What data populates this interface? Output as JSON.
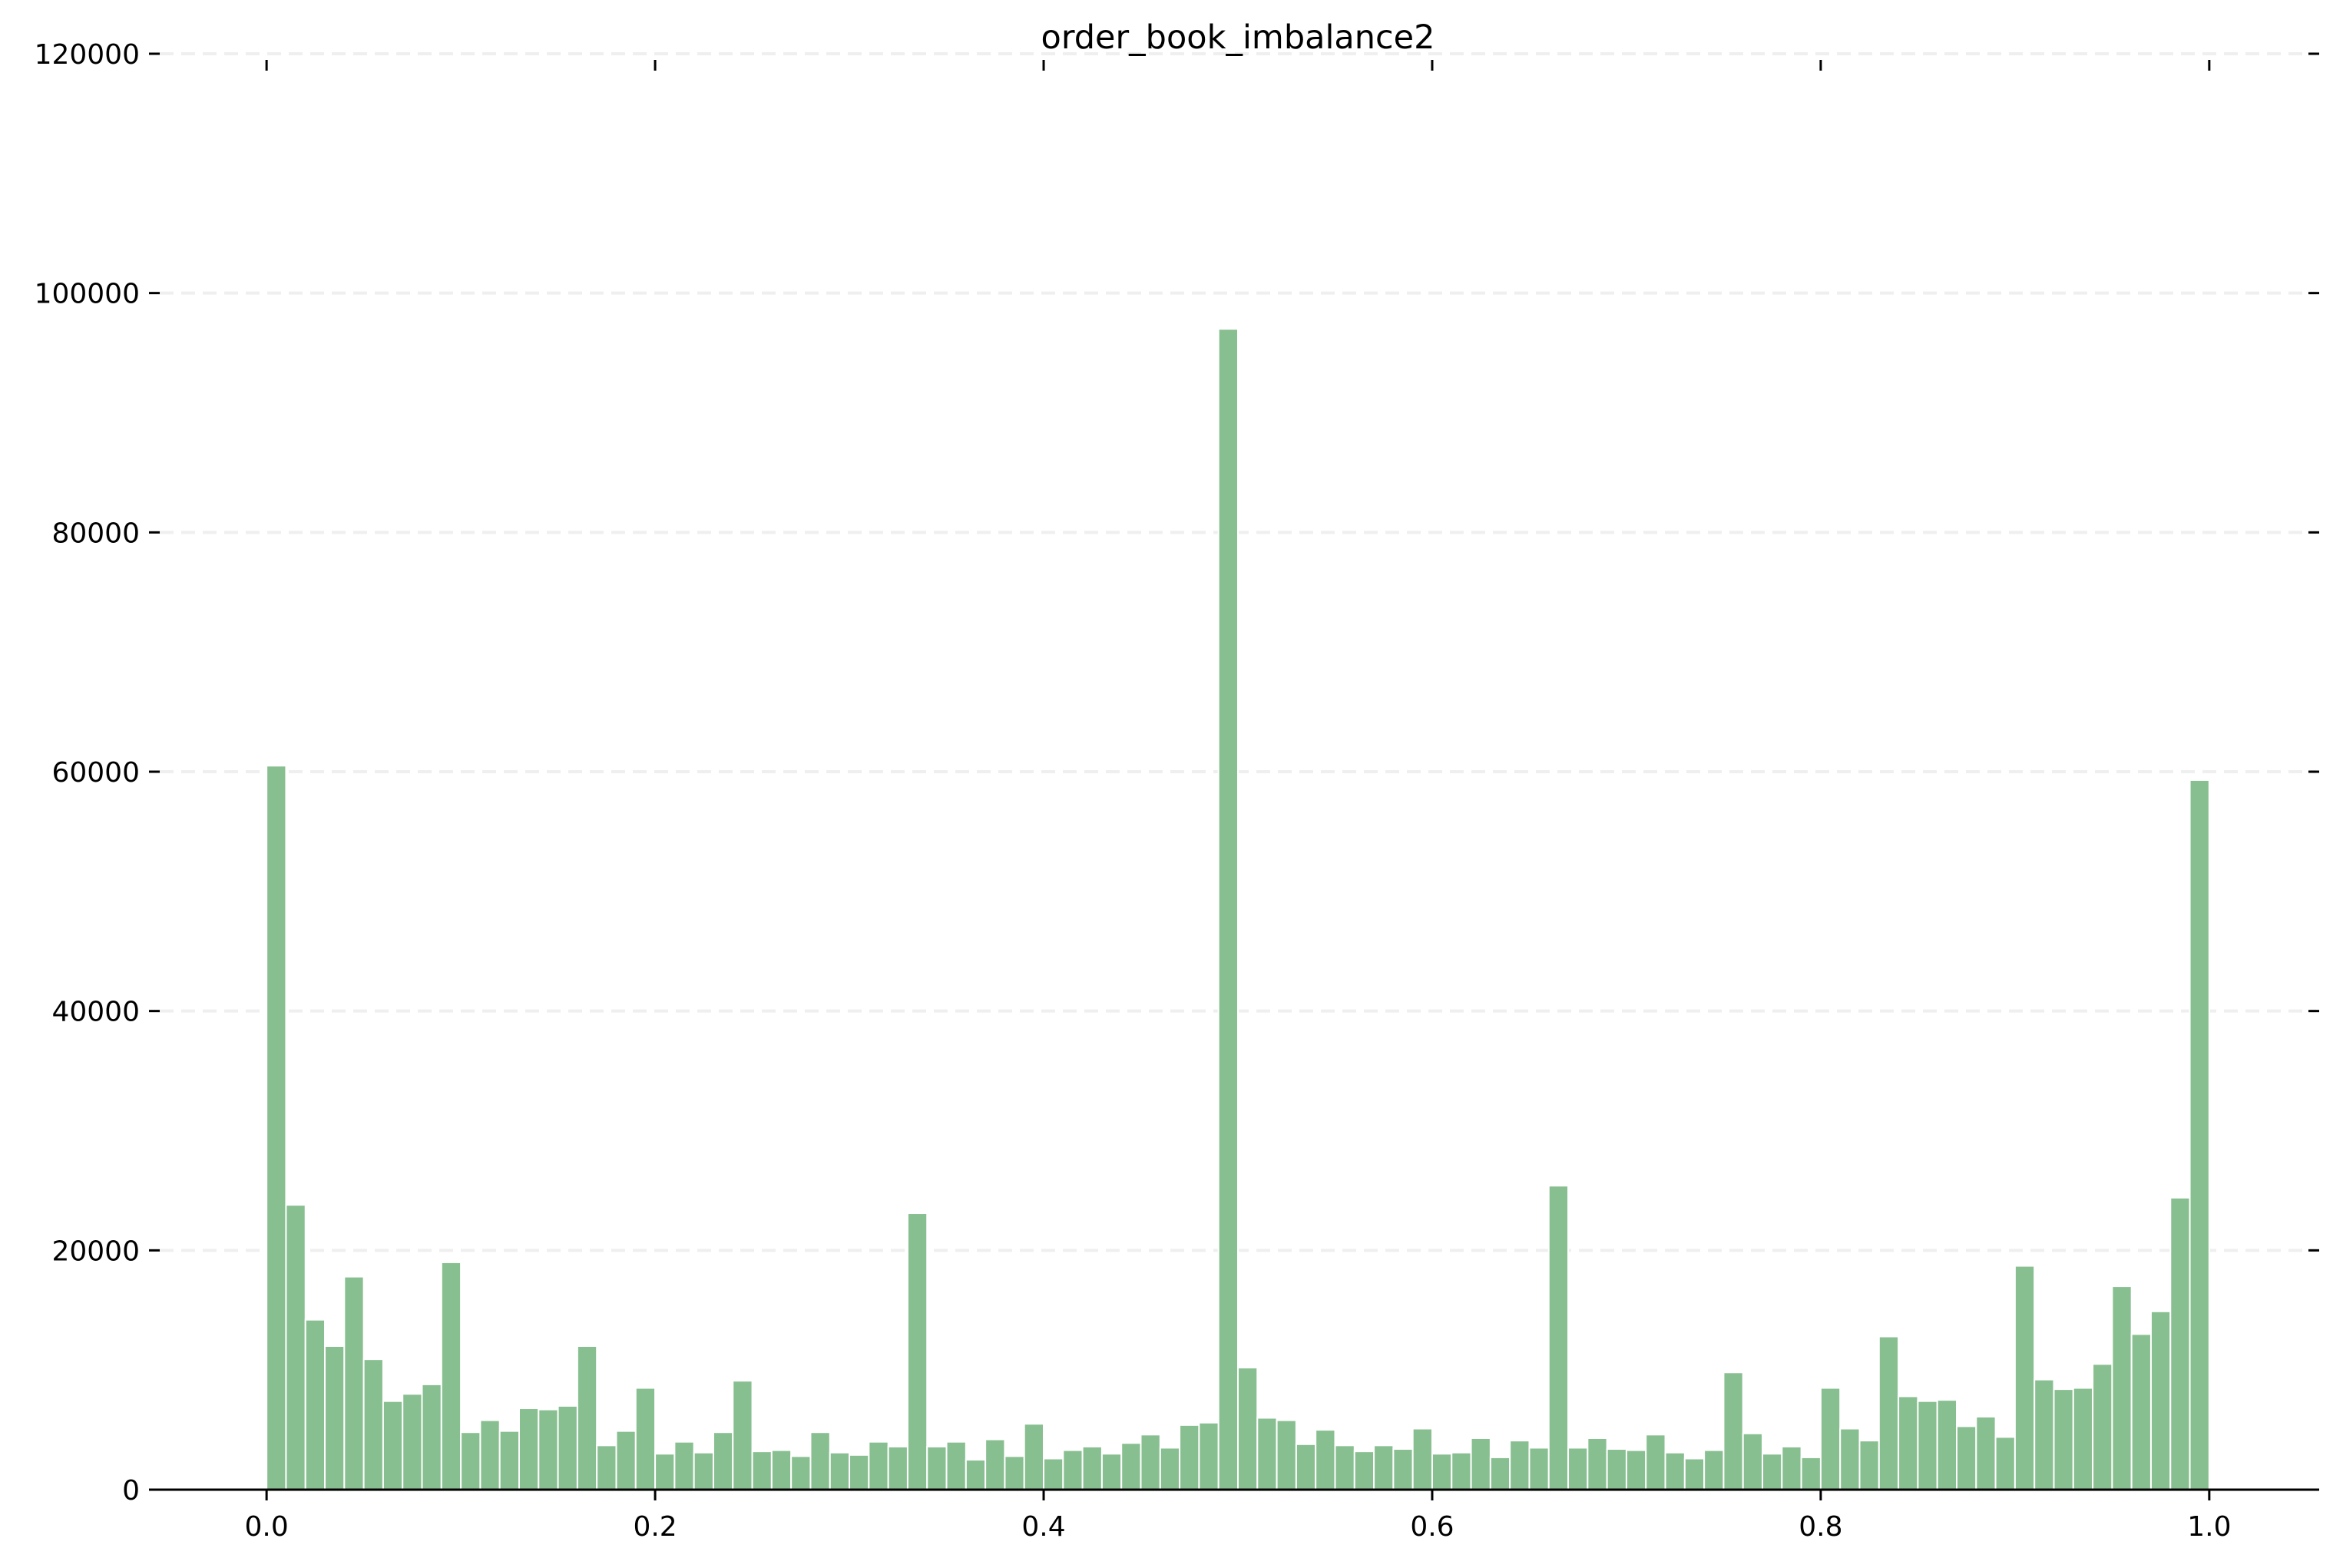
{
  "chart_data": {
    "type": "bar",
    "title": "order_book_imbalance2",
    "xlabel": "",
    "ylabel": "",
    "xlim": [
      -0.055,
      1.055
    ],
    "ylim": [
      0,
      120000
    ],
    "bin_start": 0.0,
    "bin_width": 0.01,
    "xticks": [
      0.0,
      0.2,
      0.4,
      0.6,
      0.8,
      1.0
    ],
    "xtick_labels": [
      "0.0",
      "0.2",
      "0.4",
      "0.6",
      "0.8",
      "1.0"
    ],
    "yticks": [
      0,
      20000,
      40000,
      60000,
      80000,
      100000,
      120000
    ],
    "ytick_labels": [
      "0",
      "20000",
      "40000",
      "60000",
      "80000",
      "100000",
      "120000"
    ],
    "grid": "horizontal dashed",
    "legend": "none",
    "bar_color": "#88bf90",
    "bar_edge_color": "#ffffff",
    "grid_color": "#efefef",
    "values": [
      60500,
      23800,
      14200,
      12000,
      17800,
      10900,
      7400,
      8000,
      8800,
      19000,
      4800,
      5800,
      4900,
      6800,
      6700,
      7000,
      12000,
      3700,
      4900,
      8500,
      3000,
      4000,
      3100,
      4800,
      9100,
      3200,
      3300,
      2800,
      4800,
      3100,
      2900,
      4000,
      3600,
      23100,
      3600,
      4000,
      2500,
      4200,
      2800,
      5500,
      2600,
      3300,
      3600,
      3000,
      3900,
      4600,
      3500,
      5400,
      5600,
      97000,
      10200,
      6000,
      5800,
      3800,
      5000,
      3700,
      3200,
      3700,
      3400,
      5100,
      3000,
      3100,
      4300,
      2700,
      4100,
      3500,
      25400,
      3500,
      4300,
      3400,
      3300,
      4600,
      3100,
      2600,
      3300,
      9800,
      4700,
      3000,
      3600,
      2700,
      8500,
      5100,
      4100,
      12800,
      7800,
      7400,
      7500,
      5300,
      6100,
      4400,
      18700,
      9200,
      8400,
      8500,
      10500,
      17000,
      13000,
      14900,
      24400,
      59300
    ]
  }
}
